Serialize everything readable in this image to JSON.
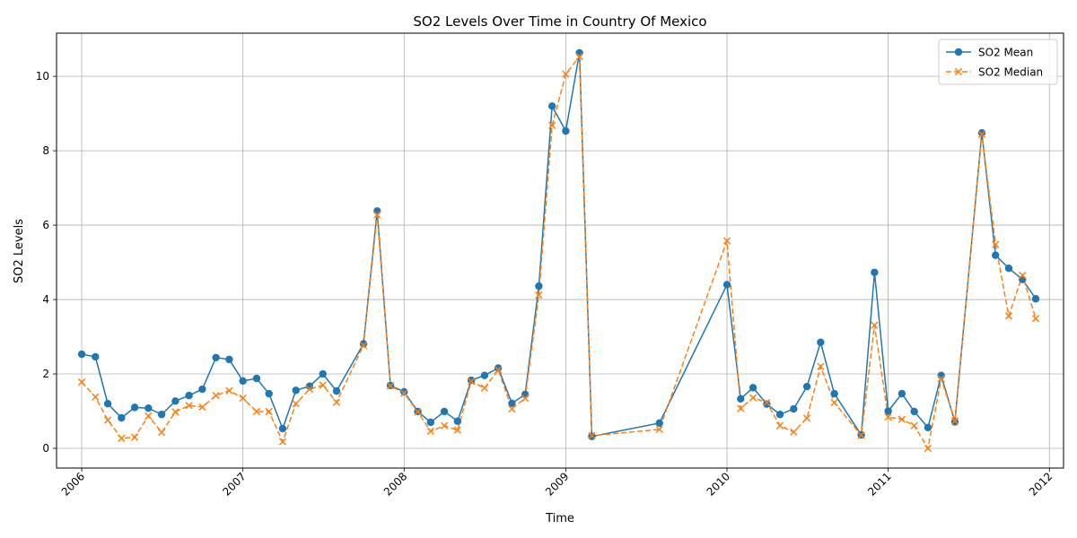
{
  "chart_data": {
    "type": "line",
    "title": "SO2 Levels Over Time in Country Of Mexico",
    "xlabel": "Time",
    "ylabel": "SO2 Levels",
    "xlim": [
      "2005-11-05",
      "2012-02-02"
    ],
    "ylim": [
      -0.53,
      11.16
    ],
    "x_ticks": [
      "2006",
      "2007",
      "2008",
      "2009",
      "2010",
      "2011",
      "2012"
    ],
    "y_ticks": [
      0,
      2,
      4,
      6,
      8,
      10
    ],
    "grid": true,
    "legend_position": "top-right",
    "series": [
      {
        "name": "SO2 Mean",
        "color": "#1f77b4",
        "style": "solid",
        "marker": "circle",
        "points": [
          [
            "2006-01-01",
            2.53
          ],
          [
            "2006-02-01",
            2.46
          ],
          [
            "2006-03-01",
            1.2
          ],
          [
            "2006-04-01",
            0.82
          ],
          [
            "2006-05-01",
            1.1
          ],
          [
            "2006-06-01",
            1.08
          ],
          [
            "2006-07-01",
            0.91
          ],
          [
            "2006-08-01",
            1.27
          ],
          [
            "2006-09-01",
            1.42
          ],
          [
            "2006-10-01",
            1.59
          ],
          [
            "2006-11-01",
            2.44
          ],
          [
            "2006-12-01",
            2.39
          ],
          [
            "2007-01-01",
            1.81
          ],
          [
            "2007-02-01",
            1.88
          ],
          [
            "2007-03-01",
            1.47
          ],
          [
            "2007-04-01",
            0.53
          ],
          [
            "2007-05-01",
            1.56
          ],
          [
            "2007-06-01",
            1.67
          ],
          [
            "2007-07-01",
            2.0
          ],
          [
            "2007-08-01",
            1.54
          ],
          [
            "2007-10-01",
            2.81
          ],
          [
            "2007-11-01",
            6.38
          ],
          [
            "2007-12-01",
            1.69
          ],
          [
            "2008-01-01",
            1.52
          ],
          [
            "2008-02-01",
            0.99
          ],
          [
            "2008-03-01",
            0.7
          ],
          [
            "2008-04-01",
            0.99
          ],
          [
            "2008-05-01",
            0.73
          ],
          [
            "2008-06-01",
            1.83
          ],
          [
            "2008-07-01",
            1.96
          ],
          [
            "2008-08-01",
            2.16
          ],
          [
            "2008-09-01",
            1.21
          ],
          [
            "2008-10-01",
            1.45
          ],
          [
            "2008-11-01",
            4.36
          ],
          [
            "2008-12-01",
            9.2
          ],
          [
            "2009-01-01",
            8.53
          ],
          [
            "2009-02-01",
            10.63
          ],
          [
            "2009-03-01",
            0.32
          ],
          [
            "2009-08-01",
            0.68
          ],
          [
            "2010-01-01",
            4.4
          ],
          [
            "2010-02-01",
            1.33
          ],
          [
            "2010-03-01",
            1.63
          ],
          [
            "2010-04-01",
            1.19
          ],
          [
            "2010-05-01",
            0.91
          ],
          [
            "2010-06-01",
            1.06
          ],
          [
            "2010-07-01",
            1.66
          ],
          [
            "2010-08-01",
            2.85
          ],
          [
            "2010-09-01",
            1.47
          ],
          [
            "2010-11-01",
            0.36
          ],
          [
            "2010-12-01",
            4.73
          ],
          [
            "2011-01-01",
            1.0
          ],
          [
            "2011-02-01",
            1.47
          ],
          [
            "2011-03-01",
            0.99
          ],
          [
            "2011-04-01",
            0.56
          ],
          [
            "2011-05-01",
            1.96
          ],
          [
            "2011-06-01",
            0.71
          ],
          [
            "2011-08-01",
            8.48
          ],
          [
            "2011-09-01",
            5.19
          ],
          [
            "2011-10-01",
            4.84
          ],
          [
            "2011-11-01",
            4.54
          ],
          [
            "2011-12-01",
            4.02
          ]
        ]
      },
      {
        "name": "SO2 Median",
        "color": "#ff7f0e",
        "style": "dashed",
        "marker": "x",
        "points": [
          [
            "2006-01-01",
            1.78
          ],
          [
            "2006-02-01",
            1.38
          ],
          [
            "2006-03-01",
            0.76
          ],
          [
            "2006-04-01",
            0.27
          ],
          [
            "2006-05-01",
            0.3
          ],
          [
            "2006-06-01",
            0.87
          ],
          [
            "2006-07-01",
            0.43
          ],
          [
            "2006-08-01",
            0.98
          ],
          [
            "2006-09-01",
            1.15
          ],
          [
            "2006-10-01",
            1.11
          ],
          [
            "2006-11-01",
            1.42
          ],
          [
            "2006-12-01",
            1.55
          ],
          [
            "2007-01-01",
            1.35
          ],
          [
            "2007-02-01",
            0.99
          ],
          [
            "2007-03-01",
            0.99
          ],
          [
            "2007-04-01",
            0.18
          ],
          [
            "2007-05-01",
            1.2
          ],
          [
            "2007-06-01",
            1.59
          ],
          [
            "2007-07-01",
            1.7
          ],
          [
            "2007-08-01",
            1.24
          ],
          [
            "2007-10-01",
            2.77
          ],
          [
            "2007-11-01",
            6.28
          ],
          [
            "2007-12-01",
            1.68
          ],
          [
            "2008-01-01",
            1.48
          ],
          [
            "2008-02-01",
            0.98
          ],
          [
            "2008-03-01",
            0.46
          ],
          [
            "2008-04-01",
            0.61
          ],
          [
            "2008-05-01",
            0.49
          ],
          [
            "2008-06-01",
            1.8
          ],
          [
            "2008-07-01",
            1.62
          ],
          [
            "2008-08-01",
            2.11
          ],
          [
            "2008-09-01",
            1.06
          ],
          [
            "2008-10-01",
            1.35
          ],
          [
            "2008-11-01",
            4.12
          ],
          [
            "2008-12-01",
            8.68
          ],
          [
            "2009-01-01",
            10.06
          ],
          [
            "2009-02-01",
            10.53
          ],
          [
            "2009-03-01",
            0.34
          ],
          [
            "2009-08-01",
            0.51
          ],
          [
            "2010-01-01",
            5.58
          ],
          [
            "2010-02-01",
            1.07
          ],
          [
            "2010-03-01",
            1.36
          ],
          [
            "2010-04-01",
            1.23
          ],
          [
            "2010-05-01",
            0.61
          ],
          [
            "2010-06-01",
            0.44
          ],
          [
            "2010-07-01",
            0.81
          ],
          [
            "2010-08-01",
            2.2
          ],
          [
            "2010-09-01",
            1.23
          ],
          [
            "2010-11-01",
            0.35
          ],
          [
            "2010-12-01",
            3.31
          ],
          [
            "2011-01-01",
            0.84
          ],
          [
            "2011-02-01",
            0.78
          ],
          [
            "2011-03-01",
            0.61
          ],
          [
            "2011-04-01",
            0.0
          ],
          [
            "2011-05-01",
            1.87
          ],
          [
            "2011-06-01",
            0.74
          ],
          [
            "2011-08-01",
            8.44
          ],
          [
            "2011-09-01",
            5.48
          ],
          [
            "2011-10-01",
            3.56
          ],
          [
            "2011-11-01",
            4.65
          ],
          [
            "2011-12-01",
            3.49
          ]
        ]
      }
    ]
  }
}
